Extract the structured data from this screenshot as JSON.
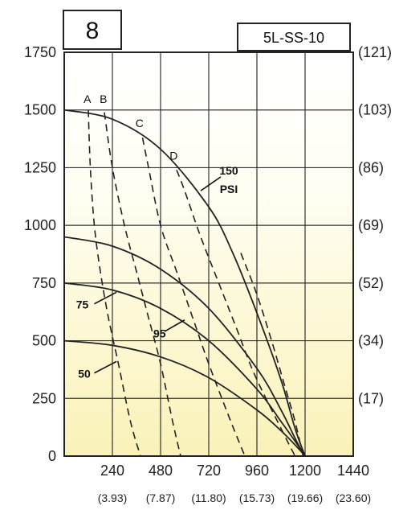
{
  "chart_data": {
    "type": "line",
    "panel_number": "8",
    "model": "5L-SS-10",
    "x_ticks": [
      "240",
      "480",
      "720",
      "960",
      "1200",
      "1440"
    ],
    "x_ticks_secondary": [
      "(3.93)",
      "(7.87)",
      "(11.80)",
      "(15.73)",
      "(19.66)",
      "(23.60)"
    ],
    "y_ticks": [
      "0",
      "250",
      "500",
      "750",
      "1000",
      "1250",
      "1500",
      "1750"
    ],
    "y_ticks_right": [
      "(17)",
      "(34)",
      "(52)",
      "(69)",
      "(86)",
      "(103)",
      "(121)"
    ],
    "xlim": [
      0,
      1440
    ],
    "ylim": [
      0,
      1750
    ],
    "grid": true,
    "series": [
      {
        "name": "150 PSI",
        "x": [
          0,
          240,
          480,
          720,
          840,
          960,
          1080,
          1150,
          1200
        ],
        "y": [
          1500,
          1460,
          1330,
          1080,
          880,
          620,
          330,
          120,
          0
        ]
      },
      {
        "name": "95",
        "x": [
          0,
          240,
          480,
          720,
          960,
          1080,
          1160,
          1200
        ],
        "y": [
          950,
          910,
          810,
          640,
          380,
          200,
          60,
          0
        ]
      },
      {
        "name": "75",
        "x": [
          0,
          240,
          480,
          720,
          960,
          1080,
          1170,
          1200
        ],
        "y": [
          750,
          720,
          640,
          500,
          290,
          150,
          40,
          0
        ]
      },
      {
        "name": "50",
        "x": [
          0,
          240,
          480,
          720,
          960,
          1080,
          1170,
          1200
        ],
        "y": [
          500,
          480,
          430,
          340,
          200,
          110,
          30,
          0
        ]
      }
    ],
    "dashed_curves": [
      {
        "name": "A",
        "x": [
          120,
          130,
          150,
          180,
          220,
          270,
          330,
          380
        ],
        "y": [
          1500,
          1250,
          1000,
          800,
          600,
          400,
          150,
          0
        ]
      },
      {
        "name": "B",
        "x": [
          200,
          240,
          300,
          360,
          420,
          480,
          540,
          580
        ],
        "y": [
          1490,
          1250,
          1000,
          800,
          600,
          400,
          150,
          0
        ]
      },
      {
        "name": "C",
        "x": [
          390,
          420,
          480,
          560,
          640,
          720,
          830,
          900
        ],
        "y": [
          1380,
          1250,
          1000,
          800,
          600,
          400,
          150,
          0
        ]
      },
      {
        "name": "D",
        "x": [
          560,
          600,
          680,
          770,
          860,
          950,
          1080,
          1150
        ],
        "y": [
          1240,
          1150,
          950,
          750,
          550,
          350,
          120,
          0
        ]
      },
      {
        "name": "",
        "x": [
          880,
          960,
          1040,
          1100,
          1150,
          1190
        ],
        "y": [
          880,
          700,
          480,
          300,
          150,
          0
        ]
      }
    ],
    "annotations": [
      {
        "text": "A",
        "x": 115,
        "y": 1530
      },
      {
        "text": "B",
        "x": 195,
        "y": 1530
      },
      {
        "text": "C",
        "x": 375,
        "y": 1425
      },
      {
        "text": "D",
        "x": 545,
        "y": 1285
      },
      {
        "text": "150",
        "x": 820,
        "y": 1220
      },
      {
        "text": "PSI",
        "x": 820,
        "y": 1140
      },
      {
        "text": "95",
        "x": 475,
        "y": 515
      },
      {
        "text": "75",
        "x": 90,
        "y": 640
      },
      {
        "text": "50",
        "x": 100,
        "y": 340
      }
    ]
  }
}
